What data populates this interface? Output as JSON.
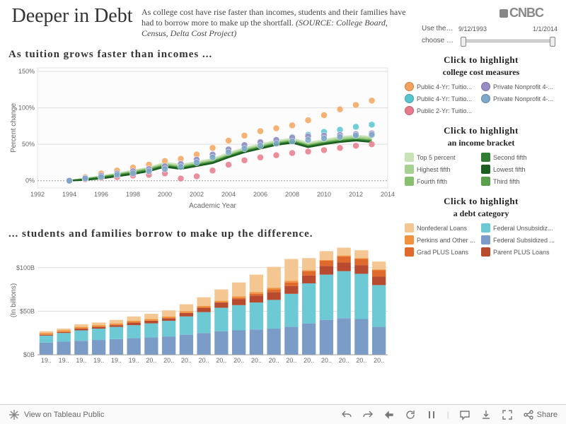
{
  "header": {
    "title": "Deeper in Debt",
    "subtitle_a": "As college cost have rise faster than incomes, students and their families have had to borrow more to make up the shortfall. ",
    "subtitle_src": "(SOURCE: College Board, Census, Delta Cost Project)",
    "logo": "CNBC",
    "slider_label_a": "Use the…",
    "slider_label_b": "choose …",
    "slider_from": "9/12/1993",
    "slider_to": "1/1/2014"
  },
  "chart1": {
    "title": "As  tuition  grows  faster  than  incomes ...",
    "ylabel": "Percent change",
    "xlabel": "Academic Year",
    "xlim": [
      1992,
      2014
    ],
    "ylim": [
      -10,
      155
    ],
    "yticks": [
      0,
      50,
      100,
      150
    ],
    "xticks": [
      1992,
      1994,
      1996,
      1998,
      2000,
      2002,
      2004,
      2006,
      2008,
      2010,
      2012,
      2014
    ],
    "years": [
      1994,
      1995,
      1996,
      1997,
      1998,
      1999,
      2000,
      2001,
      2002,
      2003,
      2004,
      2005,
      2006,
      2007,
      2008,
      2009,
      2010,
      2011,
      2012,
      2013
    ],
    "dot_series": [
      {
        "color": "#f5a35c",
        "values": [
          0,
          5,
          10,
          14,
          18,
          22,
          27,
          30,
          36,
          45,
          55,
          62,
          68,
          72,
          76,
          83,
          90,
          98,
          104,
          110
        ]
      },
      {
        "color": "#56c5d0",
        "values": [
          0,
          3,
          6,
          9,
          12,
          15,
          19,
          22,
          28,
          35,
          42,
          48,
          52,
          56,
          60,
          63,
          67,
          70,
          74,
          77
        ]
      },
      {
        "color": "#e87a8b",
        "values": [
          0,
          2,
          4,
          5,
          7,
          8,
          10,
          3,
          6,
          14,
          22,
          28,
          32,
          35,
          38,
          40,
          42,
          45,
          48,
          50
        ]
      },
      {
        "color": "#9b8bc5",
        "values": [
          0,
          4,
          7,
          10,
          13,
          16,
          20,
          23,
          29,
          36,
          43,
          49,
          53,
          56,
          59,
          61,
          62,
          63,
          64,
          65
        ]
      },
      {
        "color": "#7da8c9",
        "values": [
          0,
          3,
          5,
          8,
          10,
          13,
          16,
          19,
          25,
          32,
          39,
          44,
          48,
          51,
          54,
          56,
          58,
          60,
          62,
          63
        ]
      }
    ],
    "line_series": [
      {
        "color": "#c9e2b8",
        "values": [
          0,
          3,
          6,
          10,
          14,
          18,
          25,
          22,
          26,
          30,
          38,
          45,
          50,
          55,
          58,
          52,
          56,
          60,
          62,
          60
        ]
      },
      {
        "color": "#a8d194",
        "values": [
          0,
          3,
          6,
          9,
          13,
          17,
          23,
          20,
          24,
          28,
          36,
          43,
          48,
          53,
          56,
          50,
          54,
          58,
          60,
          58
        ]
      },
      {
        "color": "#88c070",
        "values": [
          0,
          2,
          5,
          8,
          12,
          16,
          22,
          19,
          23,
          27,
          35,
          42,
          47,
          52,
          55,
          49,
          53,
          56,
          58,
          56
        ]
      },
      {
        "color": "#5aa04a",
        "values": [
          0,
          2,
          5,
          8,
          11,
          15,
          21,
          18,
          22,
          26,
          34,
          41,
          46,
          51,
          54,
          48,
          52,
          55,
          57,
          55
        ]
      },
      {
        "color": "#2e7d32",
        "values": [
          0,
          2,
          4,
          7,
          10,
          14,
          20,
          17,
          21,
          25,
          33,
          40,
          45,
          50,
          53,
          47,
          51,
          54,
          56,
          54
        ]
      },
      {
        "color": "#1b5e20",
        "values": [
          0,
          1,
          3,
          6,
          9,
          13,
          19,
          16,
          20,
          24,
          32,
          39,
          44,
          49,
          52,
          46,
          50,
          53,
          55,
          53
        ]
      }
    ]
  },
  "chart2": {
    "title": "... students  and  families  borrow  to  make  up  the  difference.",
    "ylabel": "(In billions)",
    "ylim": [
      0,
      125
    ],
    "yticks": [
      0,
      50,
      100
    ],
    "ytick_labels": [
      "$0B",
      "$50B",
      "$100B"
    ],
    "years": [
      1994,
      1995,
      1996,
      1997,
      1998,
      1999,
      2000,
      2001,
      2002,
      2003,
      2004,
      2005,
      2006,
      2007,
      2008,
      2009,
      2010,
      2011,
      2012,
      2013
    ],
    "xtick_labels": [
      "19..",
      "19..",
      "19..",
      "19..",
      "19..",
      "19..",
      "20..",
      "20..",
      "20..",
      "20..",
      "20..",
      "20..",
      "20..",
      "20..",
      "20..",
      "20..",
      "20..",
      "20..",
      "20..",
      "20.."
    ],
    "stack_order": [
      "fed_sub",
      "fed_unsub",
      "parent_plus",
      "grad_plus",
      "perkins",
      "nonfed"
    ],
    "colors": {
      "fed_sub": "#7a9cc6",
      "fed_unsub": "#6dc9d4",
      "parent_plus": "#b84a2f",
      "grad_plus": "#e06a2b",
      "perkins": "#f0923e",
      "nonfed": "#f4c692"
    },
    "data": {
      "fed_sub": [
        14,
        15,
        16,
        17,
        18,
        19,
        20,
        21,
        23,
        25,
        27,
        28,
        29,
        30,
        32,
        36,
        40,
        42,
        41,
        32
      ],
      "fed_unsub": [
        8,
        10,
        12,
        13,
        14,
        15,
        16,
        18,
        21,
        24,
        27,
        29,
        31,
        33,
        38,
        46,
        52,
        54,
        52,
        48
      ],
      "parent_plus": [
        1,
        1,
        2,
        2,
        2,
        3,
        3,
        3,
        4,
        5,
        6,
        7,
        8,
        9,
        9,
        9,
        10,
        10,
        10,
        10
      ],
      "grad_plus": [
        0,
        0,
        0,
        0,
        0,
        0,
        0,
        0,
        0,
        0,
        0,
        1,
        2,
        3,
        4,
        5,
        6,
        7,
        7,
        7
      ],
      "perkins": [
        2,
        2,
        2,
        2,
        2,
        2,
        2,
        2,
        2,
        2,
        2,
        2,
        2,
        2,
        2,
        1,
        1,
        1,
        1,
        1
      ],
      "nonfed": [
        2,
        2,
        3,
        3,
        4,
        5,
        6,
        7,
        8,
        10,
        13,
        16,
        20,
        24,
        25,
        14,
        10,
        9,
        9,
        9
      ]
    }
  },
  "legend_cost": {
    "title": "Click  to  highlight",
    "subtitle": "college cost measures",
    "items": [
      {
        "color": "#f5a35c",
        "label": "Public 4-Yr: Tuitio..."
      },
      {
        "color": "#9b8bc5",
        "label": "Private Nonprofit 4-..."
      },
      {
        "color": "#56c5d0",
        "label": "Public 4-Yr: Tuitio..."
      },
      {
        "color": "#7da8c9",
        "label": "Private Nonprofit 4-..."
      },
      {
        "color": "#e87a8b",
        "label": "Public 2-Yr: Tuitio..."
      }
    ]
  },
  "legend_income": {
    "title": "Click  to  highlight",
    "subtitle": "an income bracket",
    "items": [
      {
        "color": "#c9e2b8",
        "label": "Top 5 percent"
      },
      {
        "color": "#2e7d32",
        "label": "Second fifth"
      },
      {
        "color": "#a8d194",
        "label": "Highest fifth"
      },
      {
        "color": "#1b5e20",
        "label": "Lowest fifth"
      },
      {
        "color": "#88c070",
        "label": "Fourth fifth"
      },
      {
        "color": "#5aa04a",
        "label": "Third fifth"
      }
    ]
  },
  "legend_debt": {
    "title": "Click  to  highlight",
    "subtitle": "a debt category",
    "items": [
      {
        "color": "#f4c692",
        "label": "Nonfederal Loans"
      },
      {
        "color": "#6dc9d4",
        "label": "Federal Unsubsidiz..."
      },
      {
        "color": "#f0923e",
        "label": "Perkins and Other ..."
      },
      {
        "color": "#7a9cc6",
        "label": "Federal Subsidized ..."
      },
      {
        "color": "#e06a2b",
        "label": "Grad PLUS Loans"
      },
      {
        "color": "#b84a2f",
        "label": "Parent PLUS Loans"
      }
    ]
  },
  "footer": {
    "tableau_label": "View on Tableau Public",
    "share": "Share"
  }
}
